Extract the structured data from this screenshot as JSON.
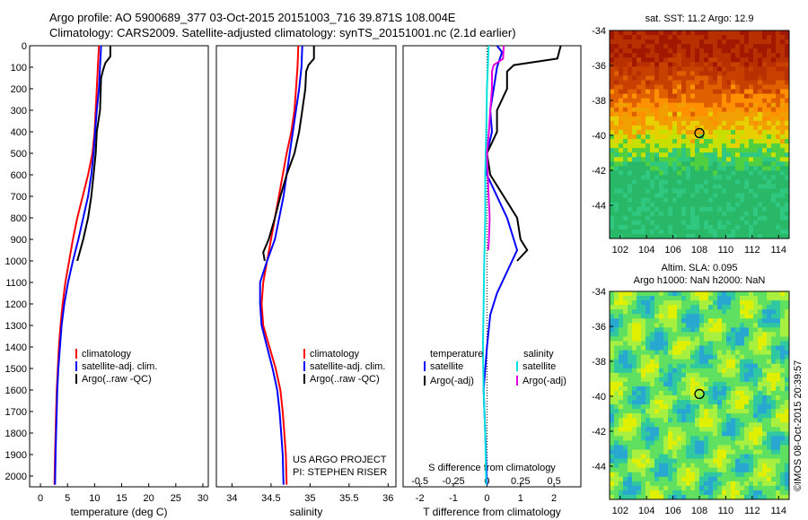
{
  "title_line1": "Argo profile: AO 5900689_377 03-Oct-2015 20151003_716 39.871S 108.004E",
  "title_line2": "Climatology: CARS2009. Satellite-adjusted climatology: synTS_20151001.nc (2.1d earlier)",
  "map1_title": "sat. SST: 11.2 Argo: 12.9",
  "map2_title1": "Altim. SLA: 0.095",
  "map2_title2": "Argo h1000: NaN h2000: NaN",
  "credit": "©IMOS 08-Oct-2015 20:39:57",
  "project_line1": "US ARGO PROJECT",
  "project_line2": "PI: STEPHEN RISER",
  "colors": {
    "climatology": "#ff0000",
    "satellite": "#0000ff",
    "argo": "#000000",
    "salinity_sat": "#00e0e0",
    "salinity_argo": "#e000e0"
  },
  "chart_data": [
    {
      "type": "line",
      "xlabel": "temperature (deg C)",
      "ylabel": "",
      "xlim": [
        -2,
        31
      ],
      "ylim": [
        2050,
        0
      ],
      "xticks": [
        0,
        5,
        10,
        15,
        20,
        25,
        30
      ],
      "yticks": [
        0,
        100,
        200,
        300,
        400,
        500,
        600,
        700,
        800,
        900,
        1000,
        1100,
        1200,
        1300,
        1400,
        1500,
        1600,
        1700,
        1800,
        1900,
        2000
      ],
      "legend": [
        "climatology",
        "satellite-adj. clim.",
        "Argo(..raw -QC)"
      ],
      "series": [
        {
          "name": "climatology",
          "color": "#ff0000",
          "points": [
            [
              10.8,
              0
            ],
            [
              10.6,
              100
            ],
            [
              10.4,
              200
            ],
            [
              10.2,
              300
            ],
            [
              10.0,
              400
            ],
            [
              9.6,
              500
            ],
            [
              8.8,
              600
            ],
            [
              7.8,
              700
            ],
            [
              6.8,
              800
            ],
            [
              6.0,
              900
            ],
            [
              5.3,
              1000
            ],
            [
              4.6,
              1100
            ],
            [
              4.1,
              1200
            ],
            [
              3.7,
              1300
            ],
            [
              3.4,
              1400
            ],
            [
              3.2,
              1500
            ],
            [
              3.0,
              1600
            ],
            [
              2.9,
              1700
            ],
            [
              2.8,
              1800
            ],
            [
              2.7,
              1900
            ],
            [
              2.6,
              2040
            ]
          ]
        },
        {
          "name": "satellite-adj. clim.",
          "color": "#0000ff",
          "points": [
            [
              11.2,
              0
            ],
            [
              11.0,
              100
            ],
            [
              10.8,
              200
            ],
            [
              10.4,
              300
            ],
            [
              10.1,
              400
            ],
            [
              9.8,
              500
            ],
            [
              9.4,
              600
            ],
            [
              8.8,
              700
            ],
            [
              7.9,
              800
            ],
            [
              7.0,
              900
            ],
            [
              6.0,
              1000
            ],
            [
              5.1,
              1100
            ],
            [
              4.4,
              1200
            ],
            [
              3.9,
              1300
            ],
            [
              3.6,
              1400
            ],
            [
              3.3,
              1500
            ],
            [
              3.1,
              1600
            ],
            [
              3.0,
              1700
            ],
            [
              2.9,
              1800
            ],
            [
              2.8,
              1900
            ],
            [
              2.7,
              2040
            ]
          ]
        },
        {
          "name": "Argo(..raw -QC)",
          "color": "#000000",
          "points": [
            [
              12.9,
              0
            ],
            [
              12.9,
              50
            ],
            [
              12.0,
              80
            ],
            [
              11.6,
              110
            ],
            [
              11.2,
              150
            ],
            [
              11.0,
              300
            ],
            [
              10.4,
              400
            ],
            [
              10.2,
              500
            ],
            [
              9.8,
              600
            ],
            [
              9.4,
              700
            ],
            [
              8.8,
              800
            ],
            [
              7.9,
              900
            ],
            [
              6.8,
              1000
            ]
          ]
        }
      ]
    },
    {
      "type": "line",
      "xlabel": "salinity",
      "ylabel": "",
      "xlim": [
        33.8,
        36.1
      ],
      "ylim": [
        2050,
        0
      ],
      "xticks": [
        34,
        34.5,
        35,
        35.5,
        36
      ],
      "xticklabels": [
        "34",
        "34.5",
        "35",
        "35.5",
        "36"
      ],
      "legend": [
        "climatology",
        "satellite-adj. clim.",
        "Argo(..raw -QC)"
      ],
      "series": [
        {
          "name": "climatology",
          "color": "#ff0000",
          "points": [
            [
              34.85,
              0
            ],
            [
              34.84,
              100
            ],
            [
              34.82,
              200
            ],
            [
              34.8,
              300
            ],
            [
              34.76,
              400
            ],
            [
              34.7,
              500
            ],
            [
              34.6,
              700
            ],
            [
              34.5,
              900
            ],
            [
              34.4,
              1100
            ],
            [
              34.38,
              1200
            ],
            [
              34.4,
              1300
            ],
            [
              34.48,
              1400
            ],
            [
              34.56,
              1500
            ],
            [
              34.62,
              1600
            ],
            [
              34.65,
              1700
            ],
            [
              34.67,
              1800
            ],
            [
              34.69,
              1900
            ],
            [
              34.7,
              2040
            ]
          ]
        },
        {
          "name": "satellite-adj. clim.",
          "color": "#0000ff",
          "points": [
            [
              34.9,
              0
            ],
            [
              34.89,
              100
            ],
            [
              34.86,
              200
            ],
            [
              34.82,
              300
            ],
            [
              34.78,
              400
            ],
            [
              34.74,
              500
            ],
            [
              34.66,
              700
            ],
            [
              34.55,
              900
            ],
            [
              34.45,
              1000
            ],
            [
              34.36,
              1100
            ],
            [
              34.36,
              1200
            ],
            [
              34.38,
              1300
            ],
            [
              34.45,
              1400
            ],
            [
              34.52,
              1500
            ],
            [
              34.58,
              1600
            ],
            [
              34.61,
              1700
            ],
            [
              34.63,
              1800
            ],
            [
              34.65,
              1900
            ],
            [
              34.66,
              2040
            ]
          ]
        },
        {
          "name": "Argo(..raw -QC)",
          "color": "#000000",
          "points": [
            [
              35.05,
              0
            ],
            [
              35.05,
              60
            ],
            [
              34.98,
              90
            ],
            [
              34.95,
              120
            ],
            [
              34.94,
              200
            ],
            [
              34.9,
              300
            ],
            [
              34.86,
              400
            ],
            [
              34.8,
              500
            ],
            [
              34.7,
              600
            ],
            [
              34.62,
              700
            ],
            [
              34.55,
              800
            ],
            [
              34.47,
              900
            ],
            [
              34.4,
              960
            ],
            [
              34.42,
              1000
            ]
          ]
        }
      ]
    },
    {
      "type": "line",
      "xlabel": "T difference from climatology",
      "xlabel2": "S difference from climatology",
      "xlim": [
        -2.5,
        2.8
      ],
      "ylim": [
        2050,
        0
      ],
      "xticks": [
        -2,
        -1,
        0,
        1,
        2
      ],
      "xticks_top": [
        -0.5,
        -0.25,
        0,
        0.25,
        0.5
      ],
      "legend_header": [
        "temperature",
        "salinity"
      ],
      "legend": [
        "satellite",
        "Argo(-adj)",
        "satellite",
        "Argo(-adj)"
      ],
      "series": [
        {
          "name": "satellite",
          "group": "temperature",
          "color": "#0000ff",
          "points": [
            [
              0.3,
              0
            ],
            [
              0.45,
              30
            ],
            [
              0.3,
              100
            ],
            [
              0.2,
              200
            ],
            [
              0.1,
              300
            ],
            [
              0.15,
              400
            ],
            [
              0.0,
              500
            ],
            [
              0.0,
              600
            ],
            [
              0.3,
              700
            ],
            [
              0.6,
              800
            ],
            [
              0.8,
              900
            ],
            [
              0.9,
              950
            ],
            [
              0.6,
              1050
            ],
            [
              0.3,
              1150
            ],
            [
              0.1,
              1250
            ],
            [
              0.0,
              1400
            ],
            [
              -0.1,
              1600
            ],
            [
              -0.05,
              1800
            ],
            [
              0.0,
              2040
            ]
          ]
        },
        {
          "name": "Argo(-adj)",
          "group": "temperature",
          "color": "#000000",
          "points": [
            [
              2.2,
              0
            ],
            [
              2.1,
              60
            ],
            [
              0.8,
              90
            ],
            [
              0.6,
              120
            ],
            [
              0.6,
              200
            ],
            [
              0.3,
              300
            ],
            [
              0.3,
              400
            ],
            [
              0.0,
              500
            ],
            [
              0.1,
              600
            ],
            [
              0.5,
              700
            ],
            [
              0.9,
              800
            ],
            [
              1.0,
              900
            ],
            [
              1.2,
              950
            ],
            [
              0.9,
              1000
            ]
          ]
        },
        {
          "name": "satellite",
          "group": "salinity",
          "color": "#00e0e0",
          "points": [
            [
              0.05,
              0
            ],
            [
              0.0,
              200
            ],
            [
              -0.02,
              400
            ],
            [
              -0.05,
              600
            ],
            [
              -0.05,
              800
            ],
            [
              -0.08,
              1000
            ],
            [
              -0.1,
              1200
            ],
            [
              -0.12,
              1400
            ],
            [
              -0.1,
              1600
            ],
            [
              -0.05,
              1800
            ],
            [
              -0.02,
              2040
            ]
          ]
        },
        {
          "name": "Argo(-adj)",
          "group": "salinity",
          "color": "#e000e0",
          "points": [
            [
              0.5,
              0
            ],
            [
              0.48,
              60
            ],
            [
              0.2,
              90
            ],
            [
              0.15,
              120
            ],
            [
              0.15,
              200
            ],
            [
              0.1,
              300
            ],
            [
              0.06,
              400
            ],
            [
              0.0,
              500
            ],
            [
              0.05,
              700
            ],
            [
              0.08,
              800
            ],
            [
              0.06,
              900
            ],
            [
              0.04,
              950
            ]
          ]
        }
      ]
    }
  ],
  "map1": {
    "xticks": [
      "102",
      "104",
      "106",
      "108",
      "110",
      "112",
      "114"
    ],
    "yticks": [
      "-34",
      "-36",
      "-38",
      "-40",
      "-42",
      "-44"
    ]
  },
  "map2": {
    "xticks": [
      "102",
      "104",
      "106",
      "108",
      "110",
      "112",
      "114"
    ],
    "yticks": [
      "-34",
      "-36",
      "-38",
      "-40",
      "-42",
      "-44"
    ]
  }
}
